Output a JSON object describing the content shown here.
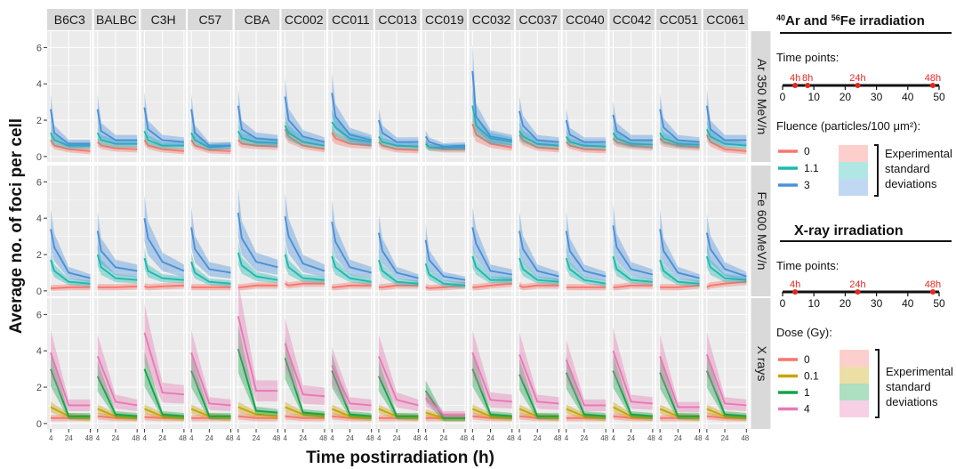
{
  "axis": {
    "ylabel": "Average no. of foci per cell",
    "xlabel": "Time postirradiation (h)",
    "yticks": [
      0,
      2,
      4,
      6
    ],
    "xticks": [
      4,
      24,
      48
    ],
    "xlim": [
      0,
      50
    ],
    "ylim": [
      -0.3,
      6.9
    ]
  },
  "columns": [
    "B6C3",
    "BALBC",
    "C3H",
    "C57",
    "CBA",
    "CC002",
    "CC011",
    "CC013",
    "CC019",
    "CC032",
    "CC037",
    "CC040",
    "CC042",
    "CC051",
    "CC061"
  ],
  "rows": [
    "Ar 350 MeV/n",
    "Fe 600 MeV/n",
    "X rays"
  ],
  "colors": {
    "dose0": "#F8766D",
    "dose01": "#C9A400",
    "dose1": "#14A44A",
    "dose4": "#E879B6",
    "flu0": "#F8766D",
    "flu11": "#1DB9B0",
    "flu3": "#4A90D9",
    "panel_bg": "#EBEBEB",
    "strip_bg": "#D9D9D9",
    "timepoint_red": "#E8261F"
  },
  "legend": {
    "hza_title_parts": [
      "40",
      "Ar and ",
      "56",
      "Fe irradiation"
    ],
    "timepoints_label": "Time points:",
    "hza_timeline": {
      "ticks": [
        "0",
        "10",
        "20",
        "30",
        "40",
        "50"
      ],
      "points": [
        {
          "t": 4,
          "label": "4h"
        },
        {
          "t": 8,
          "label": "8h"
        },
        {
          "t": 24,
          "label": "24h"
        },
        {
          "t": 48,
          "label": "48h"
        }
      ]
    },
    "fluence_title": "Fluence (particles/100 μm²):",
    "fluence_items": [
      "0",
      "1.1",
      "3"
    ],
    "sd_label_lines": [
      "Experimental",
      "standard",
      "deviations"
    ],
    "xray_title": "X-ray irradiation",
    "xray_timeline": {
      "ticks": [
        "0",
        "10",
        "20",
        "30",
        "40",
        "50"
      ],
      "points": [
        {
          "t": 4,
          "label": "4h"
        },
        {
          "t": 24,
          "label": "24h"
        },
        {
          "t": 48,
          "label": "48h"
        }
      ]
    },
    "dose_title": "Dose (Gy):",
    "dose_items": [
      "0",
      "0.1",
      "1",
      "4"
    ]
  },
  "chart_data": {
    "type": "line",
    "title": "",
    "xlabel": "Time postirradiation (h)",
    "ylabel": "Average no. of foci per cell",
    "grid": true,
    "legend_placement": "right",
    "ylim": [
      0,
      6.5
    ],
    "facets_rows": [
      "Ar 350 MeV/n",
      "Fe 600 MeV/n",
      "X rays"
    ],
    "facets_cols": [
      "B6C3",
      "BALBC",
      "C3H",
      "C57",
      "CBA",
      "CC002",
      "CC011",
      "CC013",
      "CC019",
      "CC032",
      "CC037",
      "CC040",
      "CC042",
      "CC051",
      "CC061"
    ],
    "hza_x": [
      4,
      8,
      24,
      48
    ],
    "xray_x": [
      4,
      24,
      48
    ],
    "panels": {
      "Ar 350 MeV/n": {
        "series_order": [
          "0",
          "1.1",
          "3"
        ],
        "values": {
          "B6C3": [
            [
              0.9,
              0.6,
              0.4,
              0.3
            ],
            [
              1.3,
              0.9,
              0.6,
              0.6
            ],
            [
              2.6,
              1.3,
              0.7,
              0.7
            ]
          ],
          "BALBC": [
            [
              0.8,
              0.6,
              0.45,
              0.4
            ],
            [
              1.3,
              0.9,
              0.7,
              0.7
            ],
            [
              2.6,
              1.4,
              0.9,
              0.9
            ]
          ],
          "C3H": [
            [
              0.9,
              0.6,
              0.4,
              0.3
            ],
            [
              1.4,
              0.9,
              0.6,
              0.6
            ],
            [
              2.7,
              1.5,
              0.9,
              0.8
            ]
          ],
          "C57": [
            [
              0.9,
              0.6,
              0.35,
              0.3
            ],
            [
              1.3,
              0.9,
              0.5,
              0.6
            ],
            [
              2.6,
              1.3,
              0.6,
              0.6
            ]
          ],
          "CBA": [
            [
              0.9,
              0.7,
              0.6,
              0.55
            ],
            [
              1.4,
              1.0,
              0.8,
              0.75
            ],
            [
              2.8,
              1.5,
              1.0,
              0.9
            ]
          ],
          "CC002": [
            [
              1.5,
              1.1,
              0.6,
              0.4
            ],
            [
              1.7,
              1.3,
              0.8,
              0.6
            ],
            [
              3.3,
              2.0,
              1.1,
              0.8
            ]
          ],
          "CC011": [
            [
              1.3,
              1.0,
              0.7,
              0.6
            ],
            [
              1.9,
              1.6,
              1.0,
              0.8
            ],
            [
              3.5,
              2.2,
              1.2,
              0.9
            ]
          ],
          "CC013": [
            [
              0.8,
              0.6,
              0.4,
              0.35
            ],
            [
              1.1,
              0.8,
              0.6,
              0.55
            ],
            [
              2.0,
              1.3,
              0.8,
              0.8
            ]
          ],
          "CC019": [
            [
              0.7,
              0.5,
              0.4,
              0.4
            ],
            [
              0.7,
              0.5,
              0.5,
              0.5
            ],
            [
              1.1,
              0.8,
              0.55,
              0.6
            ]
          ],
          "CC032": [
            [
              1.8,
              1.2,
              0.7,
              0.5
            ],
            [
              2.8,
              1.7,
              1.0,
              0.8
            ],
            [
              4.7,
              2.2,
              1.1,
              0.9
            ]
          ],
          "CC037": [
            [
              1.2,
              0.9,
              0.5,
              0.4
            ],
            [
              1.4,
              1.1,
              0.7,
              0.6
            ],
            [
              2.5,
              1.7,
              0.9,
              0.8
            ]
          ],
          "CC040": [
            [
              0.8,
              0.6,
              0.4,
              0.35
            ],
            [
              1.1,
              0.8,
              0.6,
              0.55
            ],
            [
              2.0,
              1.2,
              0.8,
              0.8
            ]
          ],
          "CC042": [
            [
              1.0,
              0.8,
              0.6,
              0.5
            ],
            [
              1.3,
              1.0,
              0.7,
              0.65
            ],
            [
              2.3,
              1.4,
              0.9,
              0.9
            ]
          ],
          "CC051": [
            [
              1.0,
              0.8,
              0.6,
              0.5
            ],
            [
              1.3,
              1.0,
              0.7,
              0.65
            ],
            [
              2.6,
              1.6,
              0.9,
              0.8
            ]
          ],
          "CC061": [
            [
              1.2,
              0.8,
              0.4,
              0.3
            ],
            [
              1.5,
              1.1,
              0.7,
              0.6
            ],
            [
              2.8,
              1.5,
              0.9,
              0.9
            ]
          ]
        }
      },
      "Fe 600 MeV/n": {
        "series_order": [
          "0",
          "1.1",
          "3"
        ],
        "values": {
          "B6C3": [
            [
              0.15,
              0.15,
              0.2,
              0.2
            ],
            [
              1.7,
              1.1,
              0.5,
              0.4
            ],
            [
              3.4,
              2.4,
              1.0,
              0.7
            ]
          ],
          "BALBC": [
            [
              0.2,
              0.2,
              0.2,
              0.25
            ],
            [
              2.0,
              1.3,
              0.7,
              0.6
            ],
            [
              3.3,
              2.2,
              1.3,
              1.1
            ]
          ],
          "C3H": [
            [
              0.25,
              0.2,
              0.25,
              0.3
            ],
            [
              1.8,
              1.1,
              0.7,
              0.6
            ],
            [
              4.0,
              2.9,
              1.6,
              1.1
            ]
          ],
          "C57": [
            [
              0.2,
              0.2,
              0.2,
              0.2
            ],
            [
              1.6,
              1.0,
              0.5,
              0.4
            ],
            [
              3.5,
              2.3,
              1.2,
              1.0
            ]
          ],
          "CBA": [
            [
              0.2,
              0.2,
              0.3,
              0.3
            ],
            [
              2.1,
              1.4,
              0.8,
              0.6
            ],
            [
              4.3,
              2.9,
              1.6,
              1.3
            ]
          ],
          "CC002": [
            [
              0.4,
              0.3,
              0.4,
              0.4
            ],
            [
              2.0,
              1.3,
              0.7,
              0.6
            ],
            [
              4.1,
              3.0,
              1.5,
              1.1
            ]
          ],
          "CC011": [
            [
              0.2,
              0.2,
              0.3,
              0.3
            ],
            [
              1.9,
              1.3,
              0.7,
              0.5
            ],
            [
              3.8,
              2.7,
              1.3,
              1.0
            ]
          ],
          "CC013": [
            [
              0.2,
              0.2,
              0.3,
              0.3
            ],
            [
              1.7,
              1.1,
              0.5,
              0.4
            ],
            [
              3.2,
              2.2,
              1.0,
              0.7
            ]
          ],
          "CC019": [
            [
              0.2,
              0.15,
              0.2,
              0.3
            ],
            [
              1.5,
              0.9,
              0.4,
              0.3
            ],
            [
              2.8,
              1.7,
              0.8,
              0.6
            ]
          ],
          "CC032": [
            [
              0.2,
              0.2,
              0.3,
              0.4
            ],
            [
              1.9,
              1.3,
              0.6,
              0.6
            ],
            [
              3.5,
              2.6,
              1.1,
              0.9
            ]
          ],
          "CC037": [
            [
              0.3,
              0.2,
              0.3,
              0.3
            ],
            [
              1.8,
              1.2,
              0.6,
              0.5
            ],
            [
              3.3,
              2.3,
              1.1,
              0.8
            ]
          ],
          "CC040": [
            [
              0.2,
              0.2,
              0.2,
              0.2
            ],
            [
              1.8,
              1.2,
              0.6,
              0.4
            ],
            [
              3.3,
              2.2,
              1.1,
              0.8
            ]
          ],
          "CC042": [
            [
              0.2,
              0.2,
              0.3,
              0.3
            ],
            [
              1.9,
              1.2,
              0.6,
              0.5
            ],
            [
              3.6,
              2.4,
              1.2,
              0.9
            ]
          ],
          "CC051": [
            [
              0.2,
              0.2,
              0.2,
              0.3
            ],
            [
              1.7,
              1.1,
              0.5,
              0.4
            ],
            [
              3.4,
              2.2,
              1.0,
              0.7
            ]
          ],
          "CC061": [
            [
              0.2,
              0.3,
              0.4,
              0.5
            ],
            [
              1.9,
              1.3,
              0.7,
              0.6
            ],
            [
              3.2,
              2.3,
              1.2,
              0.8
            ]
          ]
        }
      },
      "X rays": {
        "series_order": [
          "0",
          "0.1",
          "1",
          "4"
        ],
        "values": {
          "B6C3": [
            [
              0.3,
              0.3,
              0.3
            ],
            [
              0.9,
              0.4,
              0.3
            ],
            [
              3.0,
              0.4,
              0.4
            ],
            [
              3.9,
              1.0,
              1.0
            ]
          ],
          "BALBC": [
            [
              0.4,
              0.3,
              0.3
            ],
            [
              0.8,
              0.4,
              0.3
            ],
            [
              2.6,
              0.5,
              0.4
            ],
            [
              3.7,
              1.2,
              1.0
            ]
          ],
          "C3H": [
            [
              0.35,
              0.3,
              0.3
            ],
            [
              0.8,
              0.4,
              0.3
            ],
            [
              3.0,
              0.5,
              0.4
            ],
            [
              5.0,
              1.7,
              1.6
            ]
          ],
          "C57": [
            [
              0.3,
              0.3,
              0.3
            ],
            [
              0.8,
              0.4,
              0.3
            ],
            [
              2.9,
              0.4,
              0.4
            ],
            [
              3.9,
              1.1,
              1.0
            ]
          ],
          "CBA": [
            [
              0.4,
              0.3,
              0.3
            ],
            [
              0.9,
              0.5,
              0.4
            ],
            [
              4.1,
              0.7,
              0.6
            ],
            [
              5.9,
              1.8,
              1.8
            ]
          ],
          "CC002": [
            [
              0.4,
              0.3,
              0.3
            ],
            [
              0.9,
              0.5,
              0.4
            ],
            [
              3.6,
              0.6,
              0.5
            ],
            [
              4.4,
              1.6,
              1.5
            ]
          ],
          "CC011": [
            [
              0.4,
              0.3,
              0.3
            ],
            [
              0.8,
              0.4,
              0.3
            ],
            [
              2.9,
              0.5,
              0.4
            ],
            [
              3.2,
              1.1,
              1.0
            ]
          ],
          "CC013": [
            [
              0.3,
              0.3,
              0.3
            ],
            [
              0.8,
              0.4,
              0.3
            ],
            [
              2.6,
              0.4,
              0.4
            ],
            [
              3.7,
              1.3,
              1.0
            ]
          ],
          "CC019": [
            [
              0.3,
              0.3,
              0.3
            ],
            [
              0.6,
              0.3,
              0.3
            ],
            [
              1.8,
              0.3,
              0.3
            ],
            [
              1.4,
              0.5,
              0.5
            ]
          ],
          "CC032": [
            [
              0.4,
              0.3,
              0.3
            ],
            [
              0.8,
              0.4,
              0.3
            ],
            [
              3.0,
              0.5,
              0.4
            ],
            [
              3.9,
              1.3,
              1.2
            ]
          ],
          "CC037": [
            [
              0.4,
              0.3,
              0.3
            ],
            [
              0.8,
              0.4,
              0.3
            ],
            [
              2.7,
              0.4,
              0.4
            ],
            [
              3.8,
              1.2,
              1.1
            ]
          ],
          "CC040": [
            [
              0.3,
              0.3,
              0.3
            ],
            [
              0.8,
              0.4,
              0.3
            ],
            [
              2.8,
              0.5,
              0.4
            ],
            [
              3.5,
              1.0,
              1.0
            ]
          ],
          "CC042": [
            [
              0.4,
              0.3,
              0.3
            ],
            [
              0.9,
              0.4,
              0.3
            ],
            [
              2.9,
              0.5,
              0.4
            ],
            [
              4.0,
              1.2,
              1.1
            ]
          ],
          "CC051": [
            [
              0.3,
              0.3,
              0.3
            ],
            [
              0.8,
              0.4,
              0.3
            ],
            [
              2.8,
              0.4,
              0.4
            ],
            [
              3.7,
              0.9,
              0.9
            ]
          ],
          "CC061": [
            [
              0.4,
              0.3,
              0.3
            ],
            [
              0.8,
              0.4,
              0.3
            ],
            [
              2.9,
              0.5,
              0.4
            ],
            [
              3.8,
              1.1,
              1.0
            ]
          ]
        }
      }
    }
  }
}
